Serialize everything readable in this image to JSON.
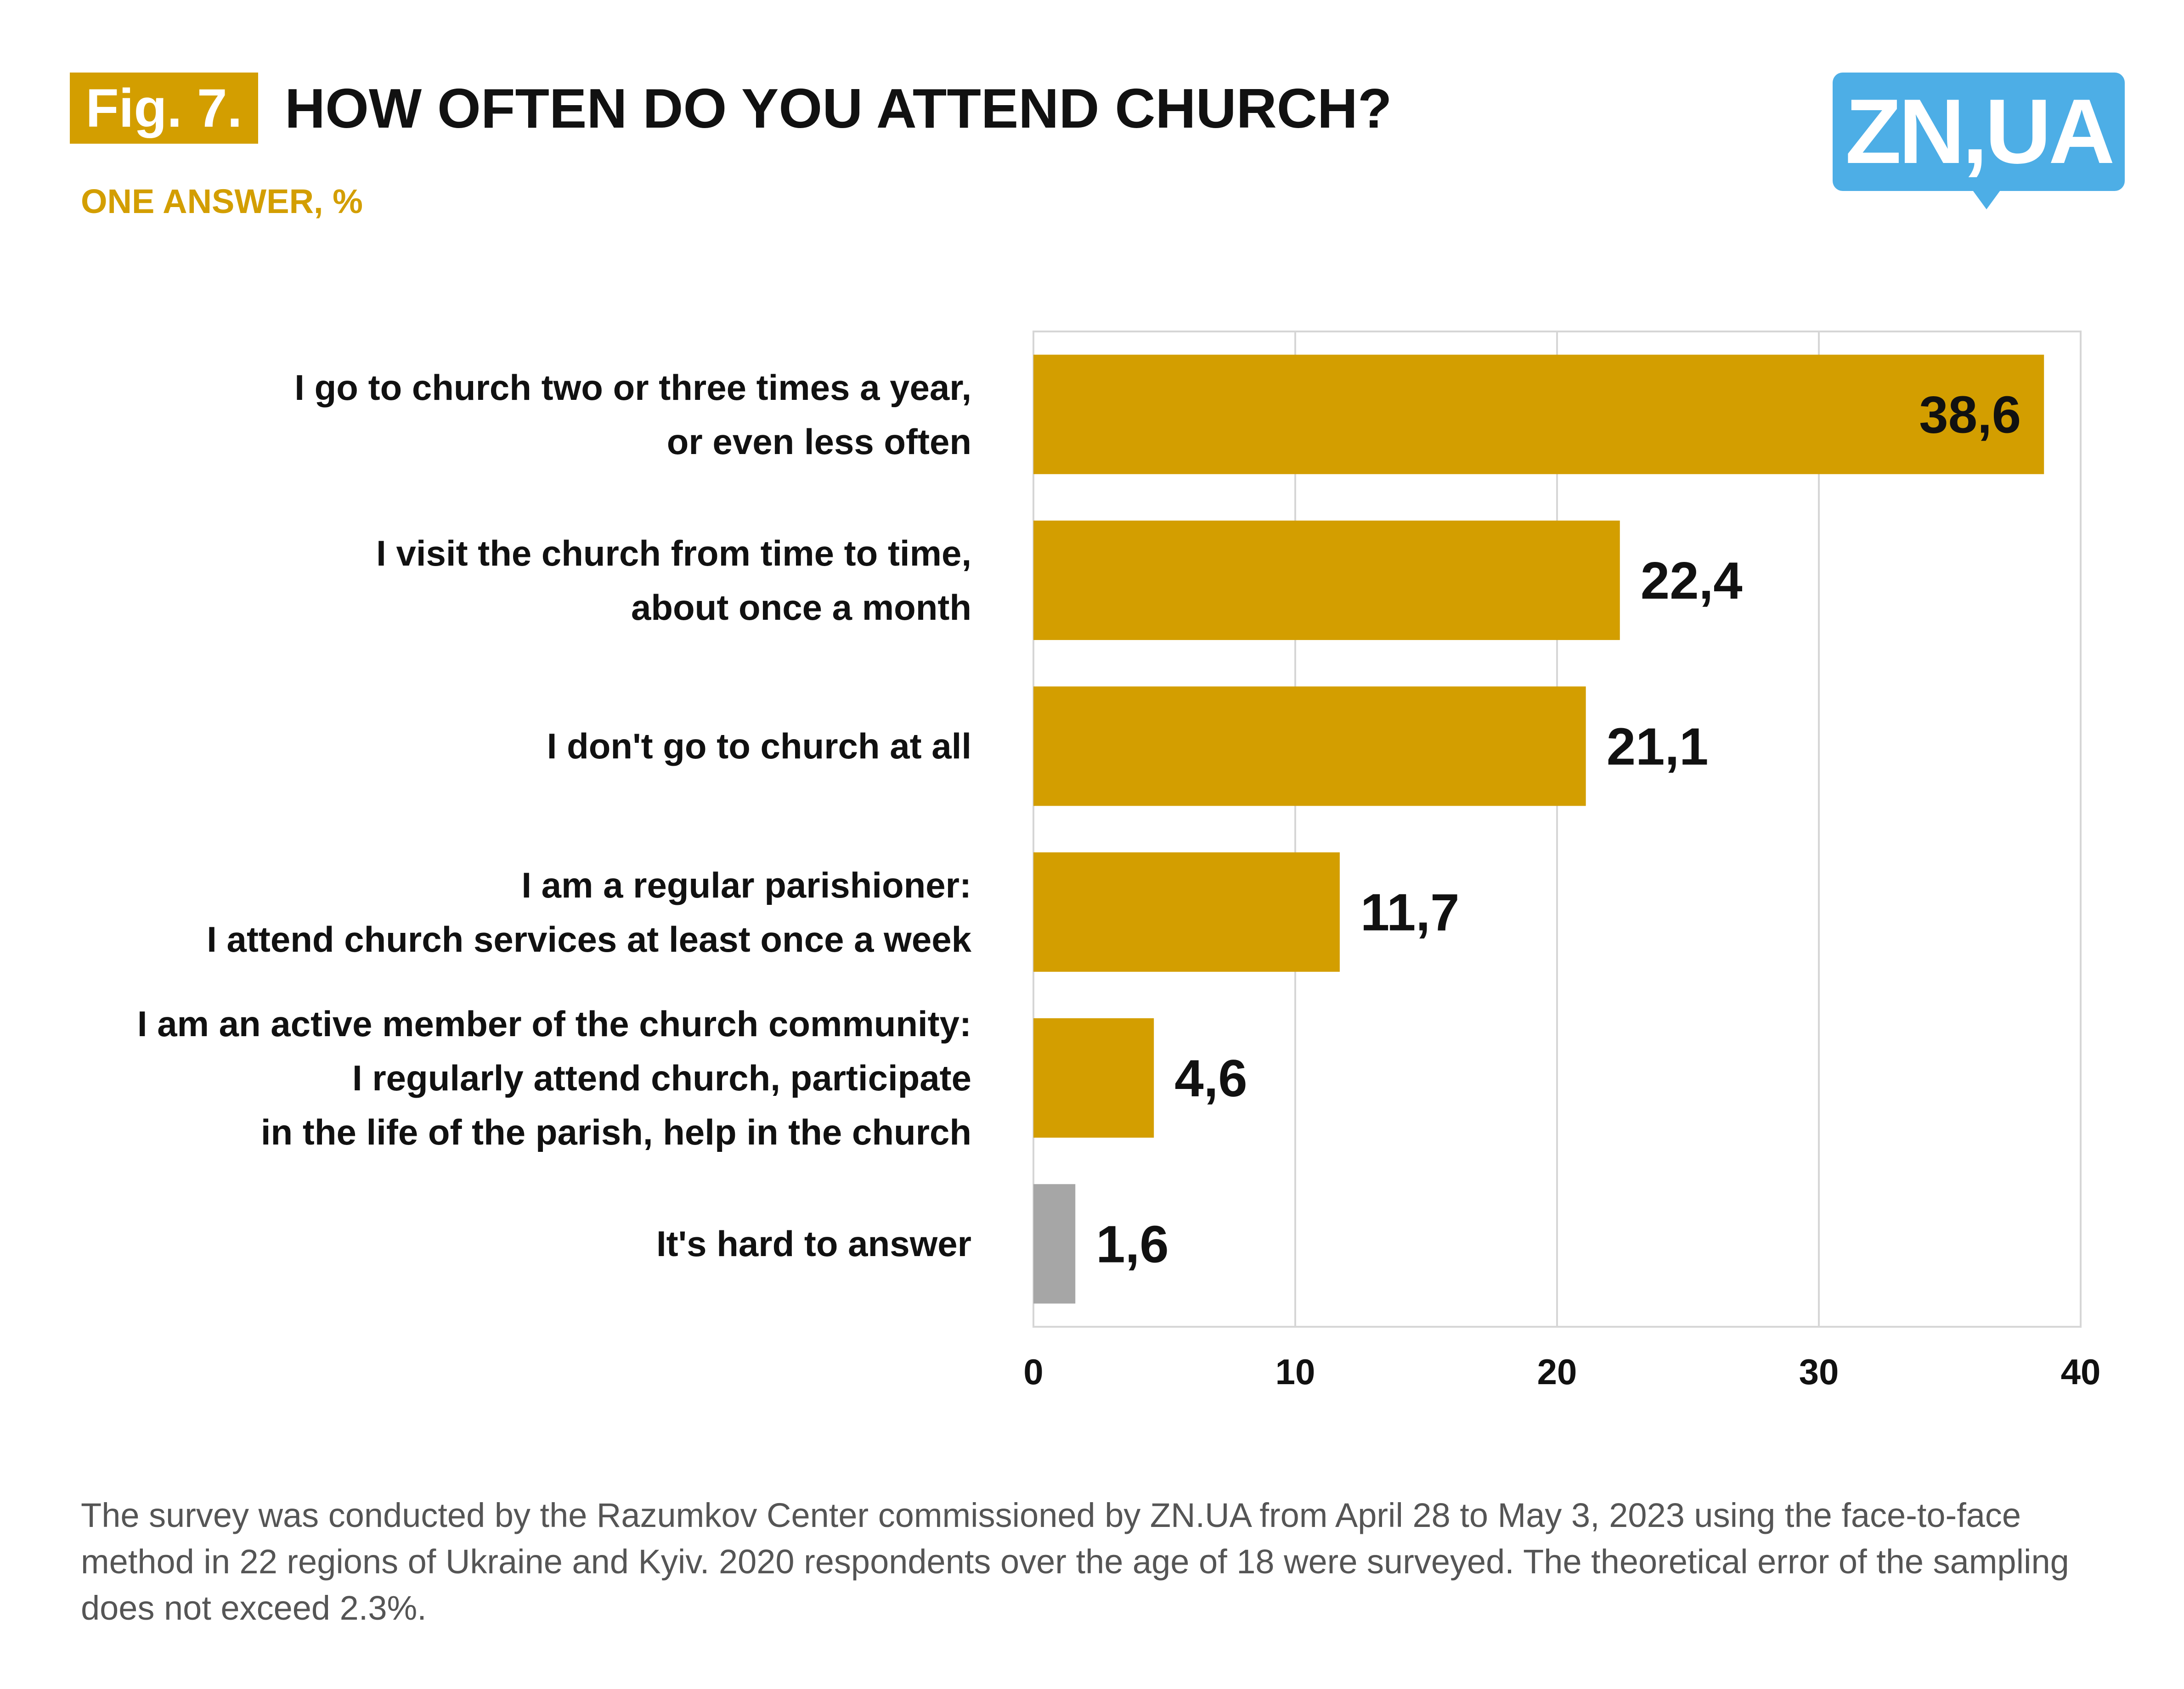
{
  "header": {
    "fig_label": "Fig. 7.",
    "title": "HOW OFTEN DO YOU ATTEND CHURCH?",
    "subtitle": "ONE ANSWER, %",
    "logo_text": "ZN,UA"
  },
  "colors": {
    "accent": "#D39E00",
    "bar_primary": "#D39E00",
    "bar_other": "#A6A6A6",
    "logo_blue": "#4DAEE6",
    "footnote_text": "#555555"
  },
  "chart_data": {
    "type": "bar",
    "orientation": "horizontal",
    "title": "HOW OFTEN DO YOU ATTEND CHURCH?",
    "subtitle": "ONE ANSWER, %",
    "categories": [
      "I go to church two or three times a year,\nor even less often",
      "I visit the church from time to time,\nabout once a month",
      "I don't go to church at all",
      "I am a regular parishioner:\nI attend church services at least once a week",
      "I am an active member of the church community:\nI regularly attend church, participate\nin the life of the parish, help in the church",
      "It's hard to answer"
    ],
    "values": [
      38.6,
      22.4,
      21.1,
      11.7,
      4.6,
      1.6
    ],
    "value_labels": [
      "38,6",
      "22,4",
      "21,1",
      "11,7",
      "4,6",
      "1,6"
    ],
    "bar_colors": [
      "#D39E00",
      "#D39E00",
      "#D39E00",
      "#D39E00",
      "#D39E00",
      "#A6A6A6"
    ],
    "xlim": [
      0,
      40
    ],
    "xticks": [
      0,
      10,
      20,
      30,
      40
    ],
    "grid": "vertical",
    "legend": "none"
  },
  "footnote": "The survey was conducted by the Razumkov Center commissioned by ZN.UA from April 28 to May 3, 2023 using the face-to-face method in 22 regions of Ukraine and Kyiv. 2020 respondents over the age of 18 were surveyed. The theoretical error of the sampling does not exceed 2.3%."
}
